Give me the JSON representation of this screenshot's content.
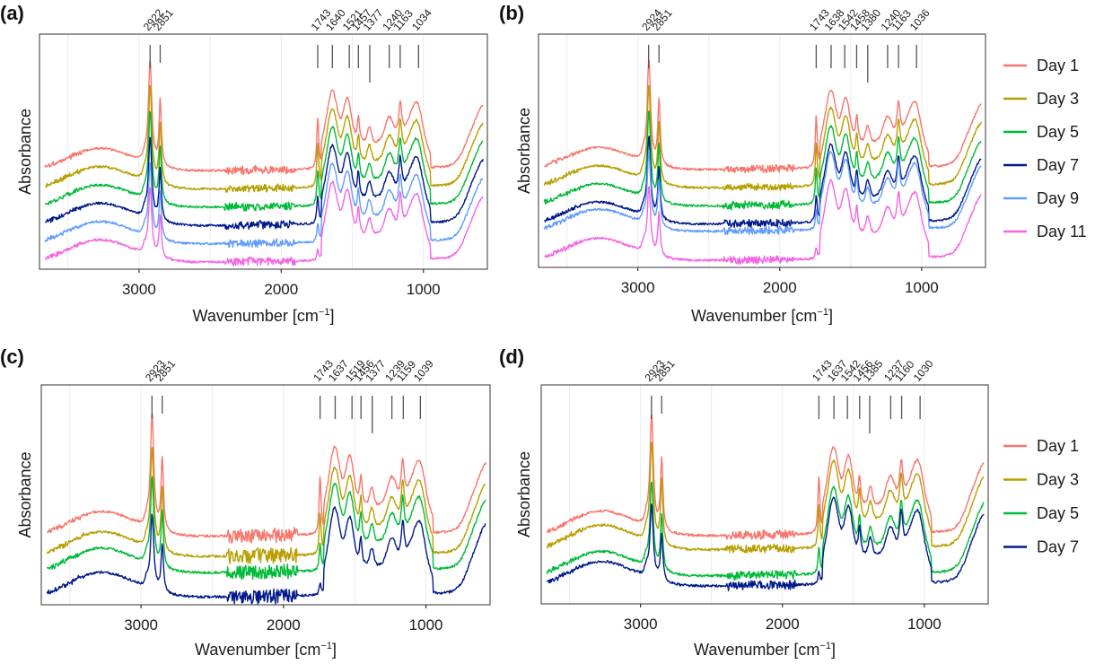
{
  "figure": {
    "description": "FTIR spectra across storage days, four panels"
  },
  "chart_data": [
    {
      "panel_label": "(a)",
      "type": "line",
      "xlabel": "Wavenumber [cm⁻¹]",
      "xlabel_main": "Wavenumber [cm",
      "xlabel_sup": "−1",
      "xlabel_close": "]",
      "ylabel": "Absorbance",
      "xlim": [
        3700,
        550
      ],
      "x_reversed": true,
      "x_ticks": [
        3000,
        2000,
        1000
      ],
      "x_tick_labels": [
        "3000",
        "2000",
        "1000"
      ],
      "x_minor_gridlines": [
        3500,
        2500,
        1500
      ],
      "grid": true,
      "y_ticks_shown": false,
      "legend": {
        "show": false
      },
      "peak_markers": [
        {
          "label": "2922",
          "x": 2922
        },
        {
          "label": "2851",
          "x": 2851
        },
        {
          "label": "1743",
          "x": 1743
        },
        {
          "label": "1640",
          "x": 1640
        },
        {
          "label": "1521",
          "x": 1521
        },
        {
          "label": "1457",
          "x": 1457
        },
        {
          "label": "1377",
          "x": 1377
        },
        {
          "label": "1240",
          "x": 1240
        },
        {
          "label": "1163",
          "x": 1163
        },
        {
          "label": "1034",
          "x": 1034
        }
      ],
      "series": [
        {
          "name": "Day 1",
          "color": "#F8766D",
          "offset": 5
        },
        {
          "name": "Day 3",
          "color": "#B79F00",
          "offset": 4
        },
        {
          "name": "Day 5",
          "color": "#00BA38",
          "offset": 3
        },
        {
          "name": "Day 7",
          "color": "#00198C",
          "offset": 2
        },
        {
          "name": "Day 9",
          "color": "#619CFF",
          "offset": 1
        },
        {
          "name": "Day 11",
          "color": "#F564E3",
          "offset": 0
        }
      ]
    },
    {
      "panel_label": "(b)",
      "type": "line",
      "xlabel": "Wavenumber [cm⁻¹]",
      "xlabel_main": "Wavenumber [cm",
      "xlabel_sup": "−1",
      "xlabel_close": "]",
      "ylabel": "Absorbance",
      "xlim": [
        3700,
        550
      ],
      "x_reversed": true,
      "x_ticks": [
        3000,
        2000,
        1000
      ],
      "x_tick_labels": [
        "3000",
        "2000",
        "1000"
      ],
      "x_minor_gridlines": [
        3500,
        2500,
        1500
      ],
      "grid": true,
      "y_ticks_shown": false,
      "legend": {
        "show": true,
        "position": "right",
        "entries": [
          {
            "label": "Day 1",
            "color": "#F8766D"
          },
          {
            "label": "Day 3",
            "color": "#B79F00"
          },
          {
            "label": "Day 5",
            "color": "#00BA38"
          },
          {
            "label": "Day 7",
            "color": "#00198C"
          },
          {
            "label": "Day 9",
            "color": "#619CFF"
          },
          {
            "label": "Day 11",
            "color": "#F564E3"
          }
        ]
      },
      "peak_markers": [
        {
          "label": "2924",
          "x": 2924
        },
        {
          "label": "2851",
          "x": 2851
        },
        {
          "label": "1743",
          "x": 1743
        },
        {
          "label": "1638",
          "x": 1638
        },
        {
          "label": "1542",
          "x": 1542
        },
        {
          "label": "1458",
          "x": 1458
        },
        {
          "label": "1380",
          "x": 1380
        },
        {
          "label": "1240",
          "x": 1240
        },
        {
          "label": "1163",
          "x": 1163
        },
        {
          "label": "1036",
          "x": 1036
        }
      ],
      "series": [
        {
          "name": "Day 1",
          "color": "#F8766D",
          "offset": 5
        },
        {
          "name": "Day 3",
          "color": "#B79F00",
          "offset": 4
        },
        {
          "name": "Day 5",
          "color": "#00BA38",
          "offset": 3
        },
        {
          "name": "Day 7",
          "color": "#00198C",
          "offset": 2
        },
        {
          "name": "Day 9",
          "color": "#619CFF",
          "offset": 1.6
        },
        {
          "name": "Day 11",
          "color": "#F564E3",
          "offset": 0
        }
      ]
    },
    {
      "panel_label": "(c)",
      "type": "line",
      "xlabel": "Wavenumber [cm⁻¹]",
      "xlabel_main": "Wavenumber [cm",
      "xlabel_sup": "−1",
      "xlabel_close": "]",
      "ylabel": "Absorbance",
      "xlim": [
        3700,
        550
      ],
      "x_reversed": true,
      "x_ticks": [
        3000,
        2000,
        1000
      ],
      "x_tick_labels": [
        "3000",
        "2000",
        "1000"
      ],
      "x_minor_gridlines": [
        3500,
        2500,
        1500
      ],
      "grid": true,
      "y_ticks_shown": false,
      "legend": {
        "show": false
      },
      "peak_markers": [
        {
          "label": "2923",
          "x": 2923
        },
        {
          "label": "2851",
          "x": 2851
        },
        {
          "label": "1743",
          "x": 1743
        },
        {
          "label": "1637",
          "x": 1637
        },
        {
          "label": "1519",
          "x": 1519
        },
        {
          "label": "1456",
          "x": 1456
        },
        {
          "label": "1377",
          "x": 1377
        },
        {
          "label": "1239",
          "x": 1239
        },
        {
          "label": "1159",
          "x": 1159
        },
        {
          "label": "1039",
          "x": 1039
        }
      ],
      "series": [
        {
          "name": "Day 1",
          "color": "#F8766D",
          "offset": 3
        },
        {
          "name": "Day 3",
          "color": "#B79F00",
          "offset": 2
        },
        {
          "name": "Day 5",
          "color": "#00BA38",
          "offset": 1.2
        },
        {
          "name": "Day 7",
          "color": "#00198C",
          "offset": 0
        }
      ]
    },
    {
      "panel_label": "(d)",
      "type": "line",
      "xlabel": "Wavenumber [cm⁻¹]",
      "xlabel_main": "Wavenumber [cm",
      "xlabel_sup": "−1",
      "xlabel_close": "]",
      "ylabel": "Absorbance",
      "xlim": [
        3700,
        550
      ],
      "x_reversed": true,
      "x_ticks": [
        3000,
        2000,
        1000
      ],
      "x_tick_labels": [
        "3000",
        "2000",
        "1000"
      ],
      "x_minor_gridlines": [
        3500,
        2500,
        1500
      ],
      "grid": true,
      "y_ticks_shown": false,
      "legend": {
        "show": true,
        "position": "right",
        "entries": [
          {
            "label": "Day 1",
            "color": "#F8766D"
          },
          {
            "label": "Day 3",
            "color": "#B79F00"
          },
          {
            "label": "Day 5",
            "color": "#00BA38"
          },
          {
            "label": "Day 7",
            "color": "#00198C"
          }
        ]
      },
      "peak_markers": [
        {
          "label": "2923",
          "x": 2923
        },
        {
          "label": "2851",
          "x": 2851
        },
        {
          "label": "1743",
          "x": 1743
        },
        {
          "label": "1637",
          "x": 1637
        },
        {
          "label": "1542",
          "x": 1542
        },
        {
          "label": "1456",
          "x": 1456
        },
        {
          "label": "1385",
          "x": 1385
        },
        {
          "label": "1237",
          "x": 1237
        },
        {
          "label": "1160",
          "x": 1160
        },
        {
          "label": "1030",
          "x": 1030
        }
      ],
      "series": [
        {
          "name": "Day 1",
          "color": "#F8766D",
          "offset": 3
        },
        {
          "name": "Day 3",
          "color": "#B79F00",
          "offset": 2.3
        },
        {
          "name": "Day 5",
          "color": "#00BA38",
          "offset": 1
        },
        {
          "name": "Day 7",
          "color": "#00198C",
          "offset": 0.5
        }
      ]
    }
  ]
}
